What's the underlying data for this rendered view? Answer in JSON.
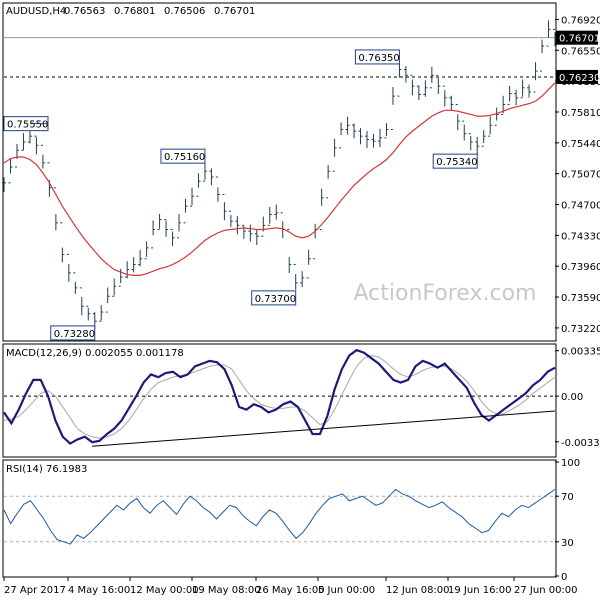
{
  "chart_data": {
    "type": "line",
    "symbol": "AUDUSD,H4",
    "ohlc": [
      "0.76563",
      "0.76801",
      "0.76506",
      "0.76701"
    ],
    "watermark": "ActionForex.com",
    "price_panel": {
      "y_ticks": [
        "0.76920",
        "0.76550",
        "0.76180",
        "0.75810",
        "0.75440",
        "0.75070",
        "0.74700",
        "0.74330",
        "0.73960",
        "0.73590",
        "0.73220"
      ],
      "ylim": [
        0.73075,
        0.77105
      ],
      "last_price": "0.76701",
      "level_line": "0.76230",
      "annotations": [
        "0.75550",
        "0.73280",
        "0.75160",
        "0.73700",
        "0.76350",
        "0.75340"
      ],
      "close_series": [
        0.7496,
        0.7515,
        0.7535,
        0.7545,
        0.7552,
        0.7541,
        0.752,
        0.749,
        0.7448,
        0.741,
        0.7388,
        0.737,
        0.7348,
        0.7339,
        0.733,
        0.7341,
        0.736,
        0.7372,
        0.7383,
        0.7392,
        0.7398,
        0.7405,
        0.7418,
        0.744,
        0.7452,
        0.744,
        0.743,
        0.7448,
        0.7468,
        0.748,
        0.7498,
        0.751,
        0.7503,
        0.7482,
        0.7462,
        0.745,
        0.7445,
        0.7438,
        0.7435,
        0.7432,
        0.7445,
        0.7458,
        0.746,
        0.744,
        0.7398,
        0.7376,
        0.7382,
        0.7405,
        0.744,
        0.7478,
        0.751,
        0.7538,
        0.756,
        0.7565,
        0.7558,
        0.7552,
        0.7548,
        0.7546,
        0.755,
        0.756,
        0.76,
        0.7632,
        0.7625,
        0.7612,
        0.7602,
        0.761,
        0.7625,
        0.7612,
        0.7598,
        0.759,
        0.757,
        0.7555,
        0.7545,
        0.754,
        0.7552,
        0.7565,
        0.7578,
        0.759,
        0.7603,
        0.7598,
        0.761,
        0.7605,
        0.763,
        0.766,
        0.768,
        0.767
      ],
      "sma_series": [
        0.752,
        0.7525,
        0.7527,
        0.7527,
        0.7524,
        0.7518,
        0.7508,
        0.7496,
        0.7482,
        0.7468,
        0.7456,
        0.7444,
        0.7433,
        0.7423,
        0.7414,
        0.7405,
        0.7398,
        0.7392,
        0.7389,
        0.7386,
        0.7385,
        0.7385,
        0.7387,
        0.739,
        0.7393,
        0.7395,
        0.7398,
        0.7402,
        0.7407,
        0.7413,
        0.742,
        0.7427,
        0.7432,
        0.7436,
        0.7439,
        0.744,
        0.7441,
        0.7442,
        0.7441,
        0.744,
        0.744,
        0.7441,
        0.7442,
        0.7441,
        0.7437,
        0.7432,
        0.743,
        0.7432,
        0.7438,
        0.7446,
        0.7455,
        0.7465,
        0.7475,
        0.7484,
        0.7493,
        0.75,
        0.7507,
        0.7513,
        0.7518,
        0.7524,
        0.7532,
        0.7542,
        0.7551,
        0.7558,
        0.7564,
        0.757,
        0.7576,
        0.758,
        0.7583,
        0.7583,
        0.7582,
        0.758,
        0.7578,
        0.7576,
        0.7576,
        0.7577,
        0.7579,
        0.7582,
        0.7585,
        0.7587,
        0.7589,
        0.7591,
        0.7594,
        0.76,
        0.7608,
        0.7616
      ]
    },
    "macd_panel": {
      "title": "MACD(12,26,9) 0.002055 0.001178",
      "y_ticks": [
        "0.003353",
        "0.00",
        "-0.003369"
      ],
      "ylim": [
        -0.00442,
        0.0037
      ],
      "macd_series": [
        -0.0012,
        -0.002,
        -0.001,
        0.0002,
        0.0012,
        0.0012,
        0.0,
        -0.0018,
        -0.003,
        -0.0035,
        -0.0032,
        -0.003,
        -0.0034,
        -0.0033,
        -0.0028,
        -0.0024,
        -0.0018,
        -0.0009,
        0.0,
        0.001,
        0.0016,
        0.0014,
        0.0017,
        0.0018,
        0.0014,
        0.0016,
        0.0022,
        0.0024,
        0.0026,
        0.0025,
        0.002,
        0.0008,
        -0.0008,
        -0.001,
        -0.0006,
        -0.0008,
        -0.0012,
        -0.001,
        -0.0006,
        -0.0004,
        -0.0008,
        -0.0018,
        -0.0028,
        -0.0028,
        -0.0015,
        0.0005,
        0.002,
        0.003,
        0.0034,
        0.0032,
        0.0028,
        0.0024,
        0.0018,
        0.0012,
        0.001,
        0.0012,
        0.0022,
        0.0026,
        0.0024,
        0.0021,
        0.0024,
        0.0018,
        0.0012,
        0.0006,
        -0.0005,
        -0.0014,
        -0.0018,
        -0.0014,
        -0.001,
        -0.0006,
        -0.0002,
        0.0002,
        0.0008,
        0.0012,
        0.0018,
        0.0021
      ],
      "signal_series": [
        -0.0018,
        -0.0017,
        -0.0015,
        -0.001,
        -0.0004,
        0.0002,
        0.0004,
        0.0,
        -0.0008,
        -0.0016,
        -0.0024,
        -0.0028,
        -0.003,
        -0.0031,
        -0.003,
        -0.0028,
        -0.0024,
        -0.0018,
        -0.001,
        -0.0002,
        0.0005,
        0.001,
        0.0012,
        0.0014,
        0.0015,
        0.0016,
        0.0018,
        0.002,
        0.0022,
        0.0023,
        0.0023,
        0.002,
        0.0012,
        0.0004,
        -0.0002,
        -0.0006,
        -0.0008,
        -0.0009,
        -0.0009,
        -0.0008,
        -0.0008,
        -0.0011,
        -0.0016,
        -0.0021,
        -0.0019,
        -0.001,
        0.0001,
        0.0012,
        0.0022,
        0.0028,
        0.003,
        0.0029,
        0.0025,
        0.002,
        0.0016,
        0.0014,
        0.0016,
        0.0019,
        0.0021,
        0.0022,
        0.0022,
        0.002,
        0.0016,
        0.0011,
        0.0004,
        -0.0004,
        -0.001,
        -0.0013,
        -0.0013,
        -0.001,
        -0.0007,
        -0.0003,
        0.0002,
        0.0006,
        0.001,
        0.0014
      ],
      "trendline": [
        [
          0,
          -0.0037
        ],
        [
          1,
          -0.0011
        ]
      ]
    },
    "rsi_panel": {
      "title": "RSI(14) 76.1983",
      "y_ticks": [
        "100",
        "70",
        "30",
        "0"
      ],
      "ylim": [
        0,
        100
      ],
      "levels": [
        70,
        30
      ],
      "rsi_series": [
        58,
        46,
        55,
        63,
        66,
        58,
        50,
        40,
        32,
        30,
        28,
        36,
        33,
        38,
        44,
        50,
        56,
        62,
        58,
        64,
        68,
        60,
        55,
        62,
        66,
        60,
        54,
        63,
        70,
        66,
        60,
        56,
        50,
        56,
        62,
        60,
        53,
        48,
        44,
        52,
        58,
        55,
        48,
        40,
        33,
        38,
        46,
        55,
        62,
        68,
        70,
        72,
        66,
        68,
        70,
        66,
        62,
        64,
        70,
        76,
        72,
        70,
        66,
        63,
        60,
        62,
        65,
        60,
        56,
        52,
        46,
        42,
        38,
        40,
        48,
        55,
        52,
        58,
        62,
        60,
        64,
        68,
        72,
        76
      ],
      "xlim": [
        0,
        100
      ]
    },
    "x_ticks": [
      "27 Apr 2017",
      "4 May 16:00",
      "12 May 00:00",
      "19 May 08:00",
      "26 May 16:00",
      "5 Jun 00:00",
      "12 Jun 08:00",
      "19 Jun 16:00",
      "27 Jun 00:00"
    ],
    "colors": {
      "price": "#1f3f4e",
      "sma": "#d43636",
      "macd": "#1b1b7a",
      "signal": "#a8a8a8",
      "rsi": "#1d5da0",
      "last_label_bg": "#000000"
    }
  }
}
